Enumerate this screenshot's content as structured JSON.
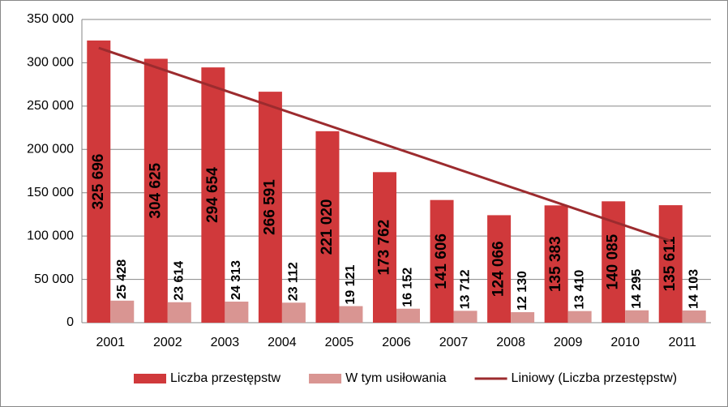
{
  "chart_data": {
    "type": "bar",
    "categories": [
      "2001",
      "2002",
      "2003",
      "2004",
      "2005",
      "2006",
      "2007",
      "2008",
      "2009",
      "2010",
      "2011"
    ],
    "series": [
      {
        "name": "Liczba przestępstw",
        "color": "#d0393b",
        "values": [
          325696,
          304625,
          294654,
          266591,
          221020,
          173762,
          141606,
          124066,
          135383,
          140085,
          135611
        ],
        "value_labels": [
          "325 696",
          "304 625",
          "294 654",
          "266 591",
          "221 020",
          "173 762",
          "141 606",
          "124 066",
          "135 383",
          "140 085",
          "135 611"
        ]
      },
      {
        "name": "W tym usiłowania",
        "color": "#d99592",
        "values": [
          25428,
          23614,
          24313,
          23112,
          19121,
          16152,
          13712,
          12130,
          13410,
          14295,
          14103
        ],
        "value_labels": [
          "25 428",
          "23 614",
          "24 313",
          "23 112",
          "19 121",
          "16 152",
          "13 712",
          "12 130",
          "13 410",
          "14 295",
          "14 103"
        ]
      }
    ],
    "trendline": {
      "name": "Liniowy (Liczba przestępstw)",
      "color": "#9c2b2e",
      "series": 0
    },
    "ylim": [
      0,
      350000
    ],
    "yticks": [
      {
        "value": 0,
        "label": "0"
      },
      {
        "value": 50000,
        "label": "50 000"
      },
      {
        "value": 100000,
        "label": "100 000"
      },
      {
        "value": 150000,
        "label": "150 000"
      },
      {
        "value": 200000,
        "label": "200 000"
      },
      {
        "value": 250000,
        "label": "250 000"
      },
      {
        "value": 300000,
        "label": "300 000"
      },
      {
        "value": 350000,
        "label": "350 000"
      }
    ],
    "grid": true
  }
}
